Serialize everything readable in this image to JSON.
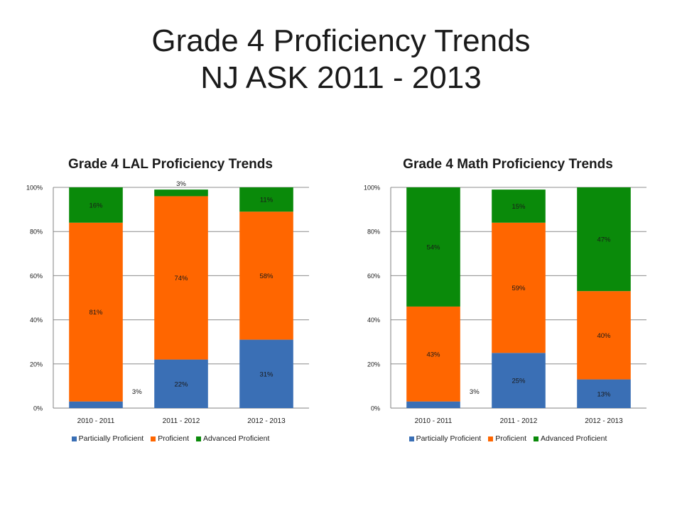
{
  "slide": {
    "title_line1": "Grade 4 Proficiency Trends",
    "title_line2": "NJ ASK 2011 - 2013"
  },
  "colors": {
    "partial": "#3a6fb5",
    "proficient": "#ff6600",
    "advanced": "#0a8a0a"
  },
  "chart_data": [
    {
      "type": "bar",
      "stacked": true,
      "title": "Grade 4 LAL Proficiency Trends",
      "categories": [
        "2010 - 2011",
        "2011 - 2012",
        "2012 - 2013"
      ],
      "series": [
        {
          "name": "Particially Proficient",
          "values": [
            3,
            22,
            31
          ],
          "labels": [
            "3%",
            "22%",
            "31%"
          ]
        },
        {
          "name": "Proficient",
          "values": [
            81,
            74,
            58
          ],
          "labels": [
            "81%",
            "74%",
            "58%"
          ]
        },
        {
          "name": "Advanced Proficient",
          "values": [
            16,
            3,
            11
          ],
          "labels": [
            "16%",
            "3%",
            "11%"
          ]
        }
      ],
      "y_ticks": [
        "0%",
        "20%",
        "40%",
        "60%",
        "80%",
        "100%"
      ],
      "ylim": [
        0,
        100
      ],
      "grid": true,
      "legend_position": "bottom"
    },
    {
      "type": "bar",
      "stacked": true,
      "title": "Grade 4 Math Proficiency Trends",
      "categories": [
        "2010 - 2011",
        "2011 - 2012",
        "2012 - 2013"
      ],
      "series": [
        {
          "name": "Particially Proficient",
          "values": [
            3,
            25,
            13
          ],
          "labels": [
            "3%",
            "25%",
            "13%"
          ]
        },
        {
          "name": "Proficient",
          "values": [
            43,
            59,
            40
          ],
          "labels": [
            "43%",
            "59%",
            "40%"
          ]
        },
        {
          "name": "Advanced Proficient",
          "values": [
            54,
            15,
            47
          ],
          "labels": [
            "54%",
            "15%",
            "47%"
          ]
        }
      ],
      "y_ticks": [
        "0%",
        "20%",
        "40%",
        "60%",
        "80%",
        "100%"
      ],
      "ylim": [
        0,
        100
      ],
      "grid": true,
      "legend_position": "bottom"
    }
  ]
}
